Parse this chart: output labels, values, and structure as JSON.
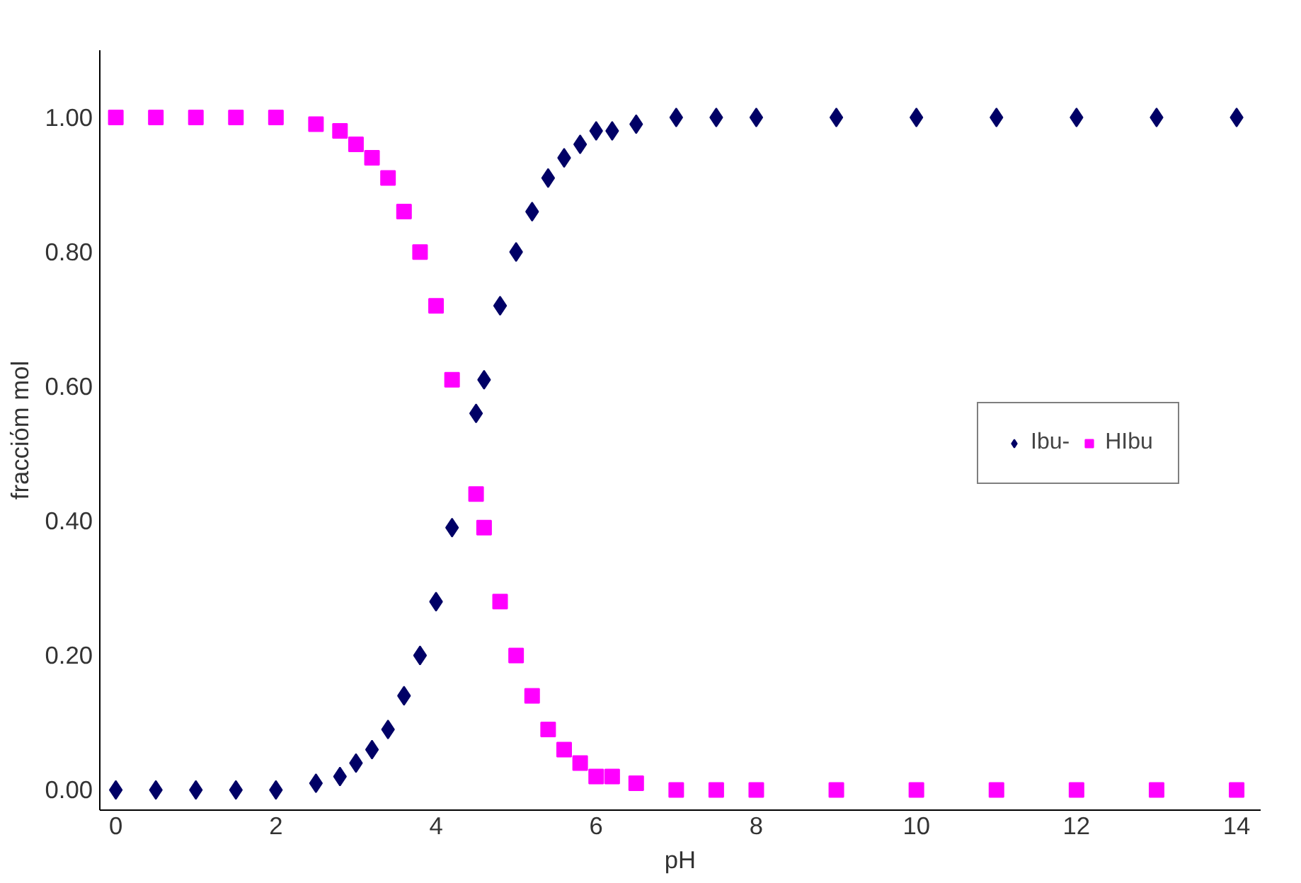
{
  "chart_data": {
    "type": "scatter",
    "xlabel": "pH",
    "ylabel": "fracciόm mol",
    "x": [
      0,
      0.5,
      1,
      1.5,
      2,
      2.5,
      2.8,
      3,
      3.2,
      3.4,
      3.6,
      3.8,
      4,
      4.2,
      4.5,
      4.6,
      4.8,
      5,
      5.2,
      5.4,
      5.6,
      5.8,
      6,
      6.2,
      6.5,
      7,
      7.5,
      8,
      9,
      10,
      11,
      12,
      13,
      14
    ],
    "series": [
      {
        "name": "Ibu-",
        "color": "#000066",
        "marker": "diamond",
        "values": [
          0,
          0,
          0,
          0,
          0,
          0.01,
          0.02,
          0.04,
          0.06,
          0.09,
          0.14,
          0.2,
          0.28,
          0.39,
          0.56,
          0.61,
          0.72,
          0.8,
          0.86,
          0.91,
          0.94,
          0.96,
          0.98,
          0.98,
          0.99,
          1,
          1,
          1,
          1,
          1,
          1,
          1,
          1,
          1
        ]
      },
      {
        "name": "HIbu",
        "color": "#ff00ff",
        "marker": "square",
        "values": [
          1,
          1,
          1,
          1,
          1,
          0.99,
          0.98,
          0.96,
          0.94,
          0.91,
          0.86,
          0.8,
          0.72,
          0.61,
          0.44,
          0.39,
          0.28,
          0.2,
          0.14,
          0.09,
          0.06,
          0.04,
          0.02,
          0.02,
          0.01,
          0,
          0,
          0,
          0,
          0,
          0,
          0,
          0,
          0
        ]
      }
    ],
    "xlim": [
      -0.2,
      14.3
    ],
    "ylim": [
      -0.03,
      1.1
    ],
    "xticks": [
      0,
      2,
      4,
      6,
      8,
      10,
      12,
      14
    ],
    "yticks": [
      {
        "value": 0,
        "label": "0.00"
      },
      {
        "value": 0.2,
        "label": "0.20"
      },
      {
        "value": 0.4,
        "label": "0.40"
      },
      {
        "value": 0.6,
        "label": "0.60"
      },
      {
        "value": 0.8,
        "label": "0.80"
      },
      {
        "value": 1,
        "label": "1.00"
      }
    ],
    "grid": false,
    "legend": "right"
  }
}
